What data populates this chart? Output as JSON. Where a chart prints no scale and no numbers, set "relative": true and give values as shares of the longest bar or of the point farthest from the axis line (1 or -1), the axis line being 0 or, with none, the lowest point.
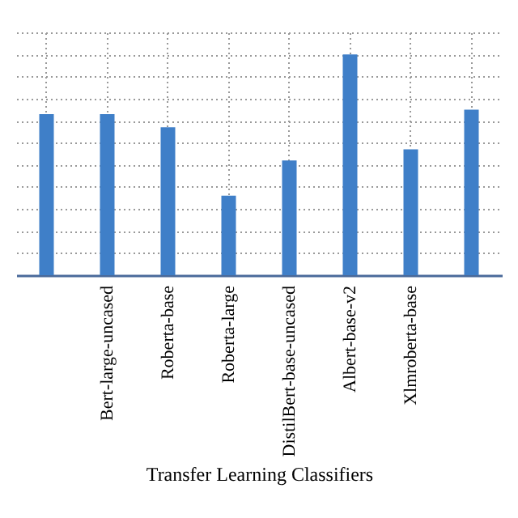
{
  "chart_data": {
    "type": "bar",
    "relative": true,
    "xlabel": "Transfer Learning Classifiers",
    "categories": [
      null,
      "Bert-large-uncased",
      "Roberta-base",
      "Roberta-large",
      "DistilBert-base-uncased",
      "Albert-base-v2",
      "Xlmroberta-base",
      null
    ],
    "values": [
      0.73,
      0.73,
      0.67,
      0.36,
      0.52,
      1,
      0.57,
      0.75
    ],
    "color": "#3f7fc8",
    "grid": true
  }
}
